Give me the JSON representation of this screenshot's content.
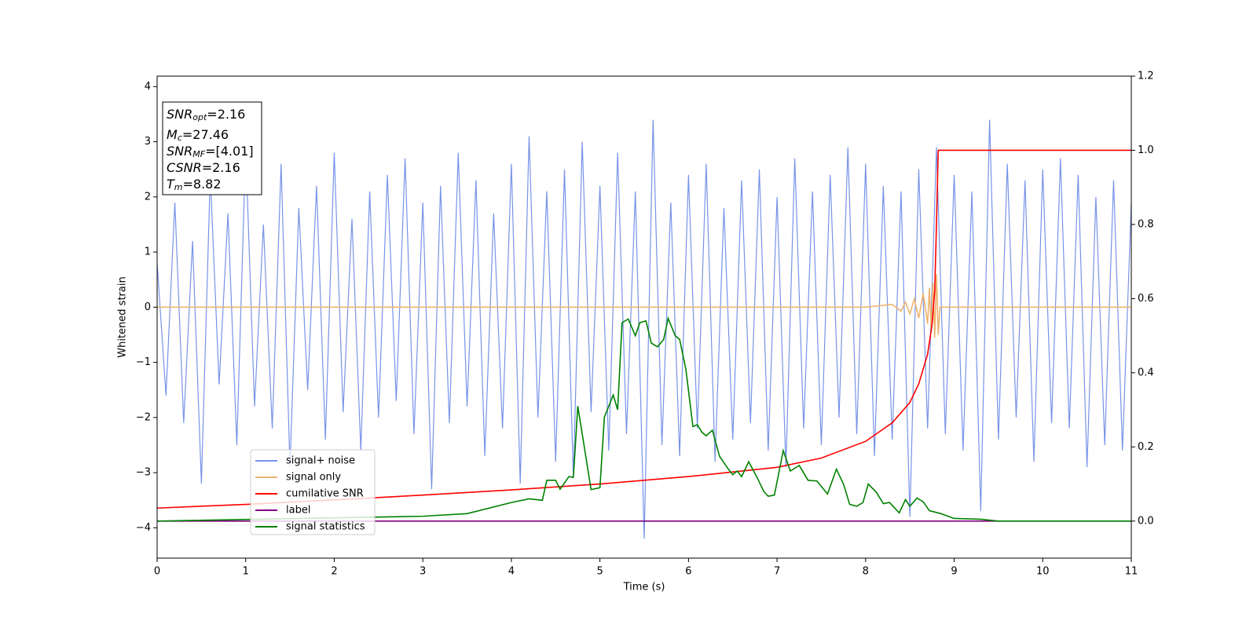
{
  "chart_data": {
    "type": "line",
    "xlabel": "Time (s)",
    "ylabel": "Whitened strain",
    "xlim": [
      0,
      11
    ],
    "xticks": [
      0,
      1,
      2,
      3,
      4,
      5,
      6,
      7,
      8,
      9,
      10,
      11
    ],
    "ylim": [
      -4.55,
      4.19
    ],
    "yticks": [
      {
        "value": -4,
        "label": "−4"
      },
      {
        "value": -3,
        "label": "−3"
      },
      {
        "value": -2,
        "label": "−2"
      },
      {
        "value": -1,
        "label": "−1"
      },
      0,
      1,
      2,
      3,
      4
    ],
    "y2lim": [
      -0.1,
      1.2
    ],
    "y2ticks": [
      {
        "value": 0,
        "label": "0.0"
      },
      {
        "value": 0.2,
        "label": "0.2"
      },
      {
        "value": 0.4,
        "label": "0.4"
      },
      {
        "value": 0.6,
        "label": "0.6"
      },
      {
        "value": 0.8,
        "label": "0.8"
      },
      {
        "value": 1.0,
        "label": "1.0"
      },
      {
        "value": 1.2,
        "label": "1.2"
      }
    ],
    "legend": "lower left",
    "annotations": [
      {
        "base": "SNR",
        "sub": "opt",
        "rest": "=2.16"
      },
      {
        "base": "M",
        "sub": "c",
        "rest": "=27.46"
      },
      {
        "base": "SNR",
        "sub": "MF",
        "rest": "=[4.01]"
      },
      {
        "base": "CSNR",
        "sub": "",
        "rest": "=2.16"
      },
      {
        "base": "T",
        "sub": "m",
        "rest": "=8.82"
      }
    ],
    "series": [
      {
        "name": "signal+ noise",
        "color": "#7893e8",
        "axis": "y",
        "x": [
          0,
          0.1,
          0.2,
          0.3,
          0.4,
          0.5,
          0.6,
          0.7,
          0.8,
          0.9,
          1,
          1.1,
          1.2,
          1.3,
          1.4,
          1.5,
          1.6,
          1.7,
          1.8,
          1.9,
          2,
          2.1,
          2.2,
          2.3,
          2.4,
          2.5,
          2.6,
          2.7,
          2.8,
          2.9,
          3,
          3.1,
          3.2,
          3.3,
          3.4,
          3.5,
          3.6,
          3.7,
          3.8,
          3.9,
          4,
          4.1,
          4.2,
          4.3,
          4.4,
          4.5,
          4.6,
          4.7,
          4.8,
          4.9,
          5,
          5.1,
          5.2,
          5.3,
          5.4,
          5.5,
          5.6,
          5.7,
          5.8,
          5.9,
          6,
          6.1,
          6.2,
          6.3,
          6.4,
          6.5,
          6.6,
          6.7,
          6.8,
          6.9,
          7,
          7.1,
          7.2,
          7.3,
          7.4,
          7.5,
          7.6,
          7.7,
          7.8,
          7.9,
          8,
          8.1,
          8.2,
          8.3,
          8.4,
          8.5,
          8.6,
          8.7,
          8.8,
          8.9,
          9,
          9.1,
          9.2,
          9.3,
          9.4,
          9.5,
          9.6,
          9.7,
          9.8,
          9.9,
          10,
          10.1,
          10.2,
          10.3,
          10.4,
          10.5,
          10.6,
          10.7,
          10.8,
          10.9,
          11
        ],
        "values": [
          0.8,
          -1.6,
          1.9,
          -2.1,
          1.2,
          -3.2,
          2.4,
          -1.4,
          1.7,
          -2.5,
          2.9,
          -1.8,
          1.5,
          -2.2,
          2.6,
          -2.9,
          1.8,
          -1.5,
          2.2,
          -2.4,
          2.8,
          -1.9,
          1.6,
          -2.6,
          2.1,
          -2.0,
          2.4,
          -1.7,
          2.7,
          -2.3,
          1.9,
          -3.3,
          2.2,
          -2.1,
          2.8,
          -1.8,
          2.3,
          -2.7,
          1.7,
          -2.2,
          2.6,
          -3.2,
          3.1,
          -2.0,
          2.1,
          -2.8,
          2.5,
          -3.1,
          3.0,
          -1.9,
          2.2,
          -2.6,
          2.8,
          -2.3,
          2.1,
          -4.2,
          3.4,
          -2.5,
          1.9,
          -2.7,
          2.4,
          -2.2,
          2.6,
          -2.8,
          1.8,
          -2.4,
          2.3,
          -2.1,
          2.5,
          -2.6,
          2.0,
          -2.9,
          2.7,
          -2.2,
          2.1,
          -2.5,
          2.4,
          -2.0,
          2.9,
          -2.3,
          2.6,
          -2.7,
          2.2,
          -2.4,
          2.1,
          -3.8,
          2.5,
          -2.2,
          2.9,
          -2.3,
          2.4,
          -2.6,
          2.1,
          -3.7,
          3.4,
          -2.4,
          2.6,
          -2.0,
          2.3,
          -2.8,
          2.5,
          -2.1,
          2.7,
          -2.2,
          2.4,
          -2.9,
          2.0,
          -2.5,
          2.3,
          -2.6,
          1.9
        ]
      },
      {
        "name": "signal only",
        "color": "#eeb470",
        "axis": "y",
        "x": [
          0,
          8.0,
          8.3,
          8.4,
          8.45,
          8.5,
          8.55,
          8.6,
          8.65,
          8.7,
          8.72,
          8.74,
          8.76,
          8.78,
          8.8,
          8.82,
          8.84,
          11
        ],
        "values": [
          0,
          0,
          0.05,
          -0.07,
          0.09,
          -0.12,
          0.15,
          -0.2,
          0.25,
          -0.3,
          0.35,
          -0.4,
          0.45,
          -0.55,
          0.6,
          -0.5,
          0,
          0
        ]
      },
      {
        "name": "cumilative SNR",
        "color": "#ff0000",
        "axis": "y2",
        "x": [
          0,
          1,
          2,
          3,
          4,
          5,
          6,
          7,
          7.5,
          8,
          8.3,
          8.5,
          8.6,
          8.7,
          8.75,
          8.78,
          8.8,
          8.82,
          9,
          11
        ],
        "values": [
          0.035,
          0.045,
          0.057,
          0.07,
          0.084,
          0.1,
          0.12,
          0.145,
          0.17,
          0.215,
          0.265,
          0.32,
          0.37,
          0.45,
          0.53,
          0.62,
          0.8,
          1.0,
          1.0,
          1.0
        ]
      },
      {
        "name": "label",
        "color": "#800080",
        "axis": "y2",
        "x": [
          0,
          11
        ],
        "values": [
          0,
          0
        ]
      },
      {
        "name": "signal statistics",
        "color": "#008000",
        "axis": "y2",
        "x": [
          0,
          3,
          3.5,
          4,
          4.2,
          4.35,
          4.4,
          4.5,
          4.55,
          4.65,
          4.7,
          4.75,
          4.9,
          5.0,
          5.05,
          5.15,
          5.2,
          5.25,
          5.32,
          5.4,
          5.45,
          5.52,
          5.58,
          5.65,
          5.72,
          5.77,
          5.85,
          5.9,
          5.97,
          6.05,
          6.1,
          6.15,
          6.2,
          6.27,
          6.35,
          6.45,
          6.5,
          6.55,
          6.6,
          6.68,
          6.78,
          6.85,
          6.9,
          6.97,
          7.07,
          7.15,
          7.25,
          7.35,
          7.45,
          7.57,
          7.67,
          7.75,
          7.82,
          7.9,
          7.97,
          8.03,
          8.12,
          8.2,
          8.27,
          8.38,
          8.45,
          8.5,
          8.58,
          8.65,
          8.72,
          8.85,
          9.0,
          9.3,
          9.5,
          11
        ],
        "values": [
          0,
          0.013,
          0.02,
          0.05,
          0.06,
          0.056,
          0.11,
          0.11,
          0.086,
          0.12,
          0.118,
          0.31,
          0.085,
          0.09,
          0.28,
          0.34,
          0.3,
          0.535,
          0.545,
          0.5,
          0.535,
          0.54,
          0.48,
          0.47,
          0.49,
          0.547,
          0.5,
          0.49,
          0.41,
          0.255,
          0.26,
          0.24,
          0.23,
          0.245,
          0.175,
          0.14,
          0.125,
          0.135,
          0.12,
          0.16,
          0.115,
          0.08,
          0.067,
          0.07,
          0.19,
          0.135,
          0.15,
          0.11,
          0.108,
          0.073,
          0.14,
          0.1,
          0.045,
          0.04,
          0.05,
          0.1,
          0.078,
          0.047,
          0.05,
          0.022,
          0.058,
          0.04,
          0.062,
          0.052,
          0.028,
          0.02,
          0.007,
          0.005,
          0,
          0
        ]
      }
    ]
  }
}
